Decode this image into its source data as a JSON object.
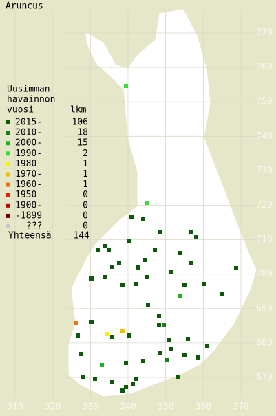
{
  "title": "Aruncus",
  "legend": {
    "heading": [
      "Uusimman",
      "havainnon",
      "vuosi"
    ],
    "count_heading": "lkm",
    "rows": [
      {
        "label": "2015-",
        "count": 106,
        "color": "#0a5a0a"
      },
      {
        "label": "2010-",
        "count": 18,
        "color": "#128212"
      },
      {
        "label": "2000-",
        "count": 15,
        "color": "#1cb41c"
      },
      {
        "label": "1990-",
        "count": 2,
        "color": "#34e034"
      },
      {
        "label": "1980-",
        "count": 1,
        "color": "#f4f400"
      },
      {
        "label": "1970-",
        "count": 1,
        "color": "#f0c000"
      },
      {
        "label": "1960-",
        "count": 1,
        "color": "#f07010"
      },
      {
        "label": "1950-",
        "count": 0,
        "color": "#e82010"
      },
      {
        "label": "1900-",
        "count": 0,
        "color": "#c00000"
      },
      {
        "label": "-1899",
        "count": 0,
        "color": "#800000"
      },
      {
        "label": "???",
        "count": 0,
        "color": "#c8c8c8"
      }
    ],
    "total_label": "Yhteensä",
    "total": 144
  },
  "x_axis": {
    "ticks": [
      310,
      320,
      330,
      340,
      350,
      360,
      370
    ]
  },
  "y_axis": {
    "ticks": [
      670,
      680,
      690,
      700,
      710,
      720,
      730,
      740,
      750,
      760,
      770
    ]
  }
}
